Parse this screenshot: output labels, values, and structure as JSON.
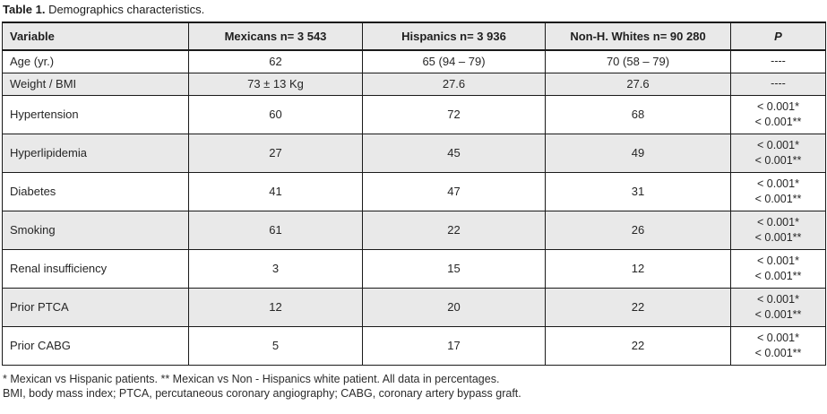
{
  "caption": {
    "label": "Table 1.",
    "text": " Demographics characteristics."
  },
  "table": {
    "columns": [
      "Variable",
      "Mexicans n= 3 543",
      "Hispanics n= 3 936",
      "Non-H. Whites n= 90 280",
      "P"
    ],
    "rows": [
      [
        "Age (yr.)",
        "62",
        "65 (94 – 79)",
        "70 (58 – 79)",
        "----"
      ],
      [
        "Weight / BMI",
        "73 ± 13 Kg",
        "27.6",
        "27.6",
        "----"
      ],
      [
        "Hypertension",
        "60",
        "72",
        "68",
        "< 0.001*\n< 0.001**"
      ],
      [
        "Hyperlipidemia",
        "27",
        "45",
        "49",
        "< 0.001*\n< 0.001**"
      ],
      [
        "Diabetes",
        "41",
        "47",
        "31",
        "< 0.001*\n< 0.001**"
      ],
      [
        "Smoking",
        "61",
        "22",
        "26",
        "< 0.001*\n< 0.001**"
      ],
      [
        "Renal insufficiency",
        "3",
        "15",
        "12",
        "< 0.001*\n< 0.001**"
      ],
      [
        "Prior PTCA",
        "12",
        "20",
        "22",
        "< 0.001*\n< 0.001**"
      ],
      [
        "Prior CABG",
        "5",
        "17",
        "22",
        "< 0.001*\n< 0.001**"
      ]
    ]
  },
  "footnotes": {
    "line1": "* Mexican vs Hispanic patients. ** Mexican vs Non - Hispanics white patient. All data in percentages.",
    "line2": "BMI, body mass index; PTCA, percutaneous coronary angiography; CABG, coronary artery bypass graft."
  }
}
